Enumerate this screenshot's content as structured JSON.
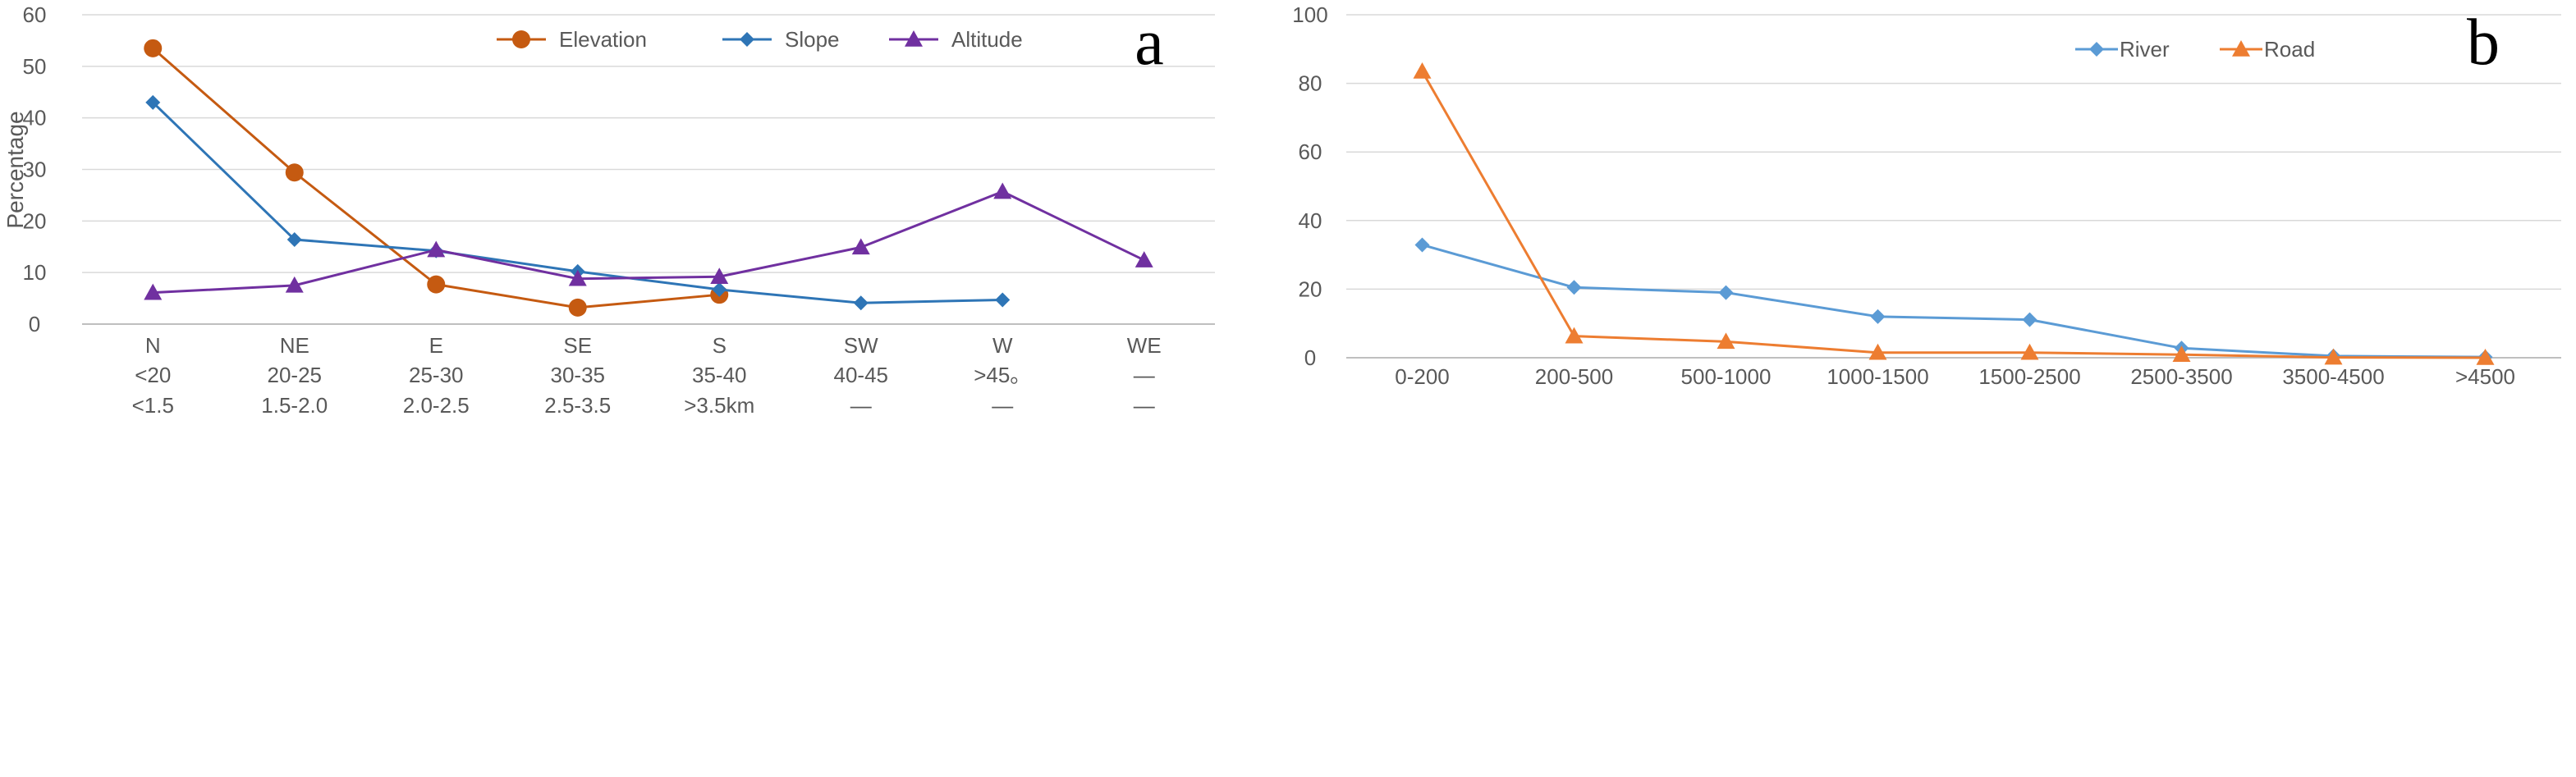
{
  "chart_data": [
    {
      "type": "line",
      "panel_label": "a",
      "title": "",
      "ylabel": "Percentage",
      "xlabel": "",
      "ylim": [
        0,
        60
      ],
      "yticks": [
        0,
        10,
        20,
        30,
        40,
        50,
        60
      ],
      "grid": true,
      "legend_position": "top-right",
      "categories": [
        [
          "N",
          "<20",
          "<1.5"
        ],
        [
          "NE",
          "20-25",
          "1.5-2.0"
        ],
        [
          "E",
          "25-30",
          "2.0-2.5"
        ],
        [
          "SE",
          "30-35",
          "2.5-3.5"
        ],
        [
          "S",
          "35-40",
          ">3.5km"
        ],
        [
          "SW",
          "40-45",
          "—"
        ],
        [
          "W",
          ">45。",
          "—"
        ],
        [
          "WE",
          "—",
          "—"
        ]
      ],
      "series": [
        {
          "name": "Elevation",
          "color": "#c55a11",
          "marker": "circle",
          "values": [
            53.5,
            29.4,
            7.7,
            3.2,
            5.7,
            null,
            null,
            null
          ]
        },
        {
          "name": "Slope",
          "color": "#2e75b6",
          "marker": "diamond",
          "values": [
            43.0,
            16.4,
            14.2,
            10.2,
            6.7,
            4.1,
            4.7,
            null
          ]
        },
        {
          "name": "Altitude",
          "color": "#7030a0",
          "marker": "triangle",
          "values": [
            6.1,
            7.5,
            14.4,
            8.8,
            9.2,
            14.9,
            25.7,
            12.4
          ]
        }
      ]
    },
    {
      "type": "line",
      "panel_label": "b",
      "title": "",
      "ylabel": "",
      "xlabel": "",
      "ylim": [
        0,
        100
      ],
      "yticks": [
        0,
        20,
        40,
        60,
        80,
        100
      ],
      "grid": true,
      "legend_position": "top-right",
      "categories": [
        [
          "0-200"
        ],
        [
          "200-500"
        ],
        [
          "500-1000"
        ],
        [
          "1000-1500"
        ],
        [
          "1500-2500"
        ],
        [
          "2500-3500"
        ],
        [
          "3500-4500"
        ],
        [
          ">4500"
        ]
      ],
      "series": [
        {
          "name": "River",
          "color": "#5b9bd5",
          "marker": "diamond",
          "values": [
            32.9,
            20.5,
            19.0,
            12.0,
            11.1,
            2.8,
            0.5,
            0.2
          ]
        },
        {
          "name": "Road",
          "color": "#ed7d31",
          "marker": "triangle",
          "values": [
            83.5,
            6.3,
            4.7,
            1.5,
            1.5,
            0.9,
            0.1,
            0.0
          ]
        }
      ]
    }
  ]
}
